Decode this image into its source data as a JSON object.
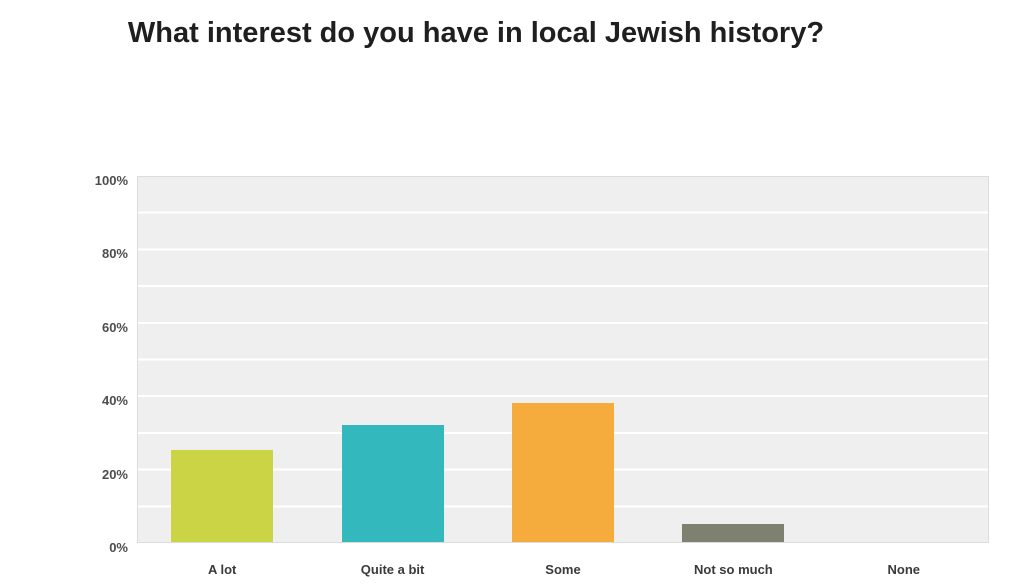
{
  "chart_data": {
    "type": "bar",
    "title": "What interest do you have in local Jewish history?",
    "categories": [
      "A lot",
      "Quite a bit",
      "Some",
      "Not so much",
      "None"
    ],
    "values": [
      25,
      32,
      38,
      5,
      0
    ],
    "value_unit": "%",
    "bar_colors": [
      "#cbd444",
      "#32b8bd",
      "#f5ac3c",
      "#7e8070",
      null
    ],
    "xlabel": "",
    "ylabel": "",
    "ylim": [
      0,
      100
    ],
    "y_ticks": [
      0,
      20,
      40,
      60,
      80,
      100
    ],
    "y_tick_suffix": "%",
    "grid": "horizontal minor gridlines every 10%, white on light gray panel",
    "legend": "none",
    "colors": {
      "plot_background": "#efefef",
      "gridline": "#ffffff",
      "plot_border": "#dcdcdc",
      "title_text": "#1f1f1f",
      "axis_tick_text": "#4d4d4d",
      "category_text": "#3a3a3a",
      "page_background": "#ffffff"
    }
  }
}
